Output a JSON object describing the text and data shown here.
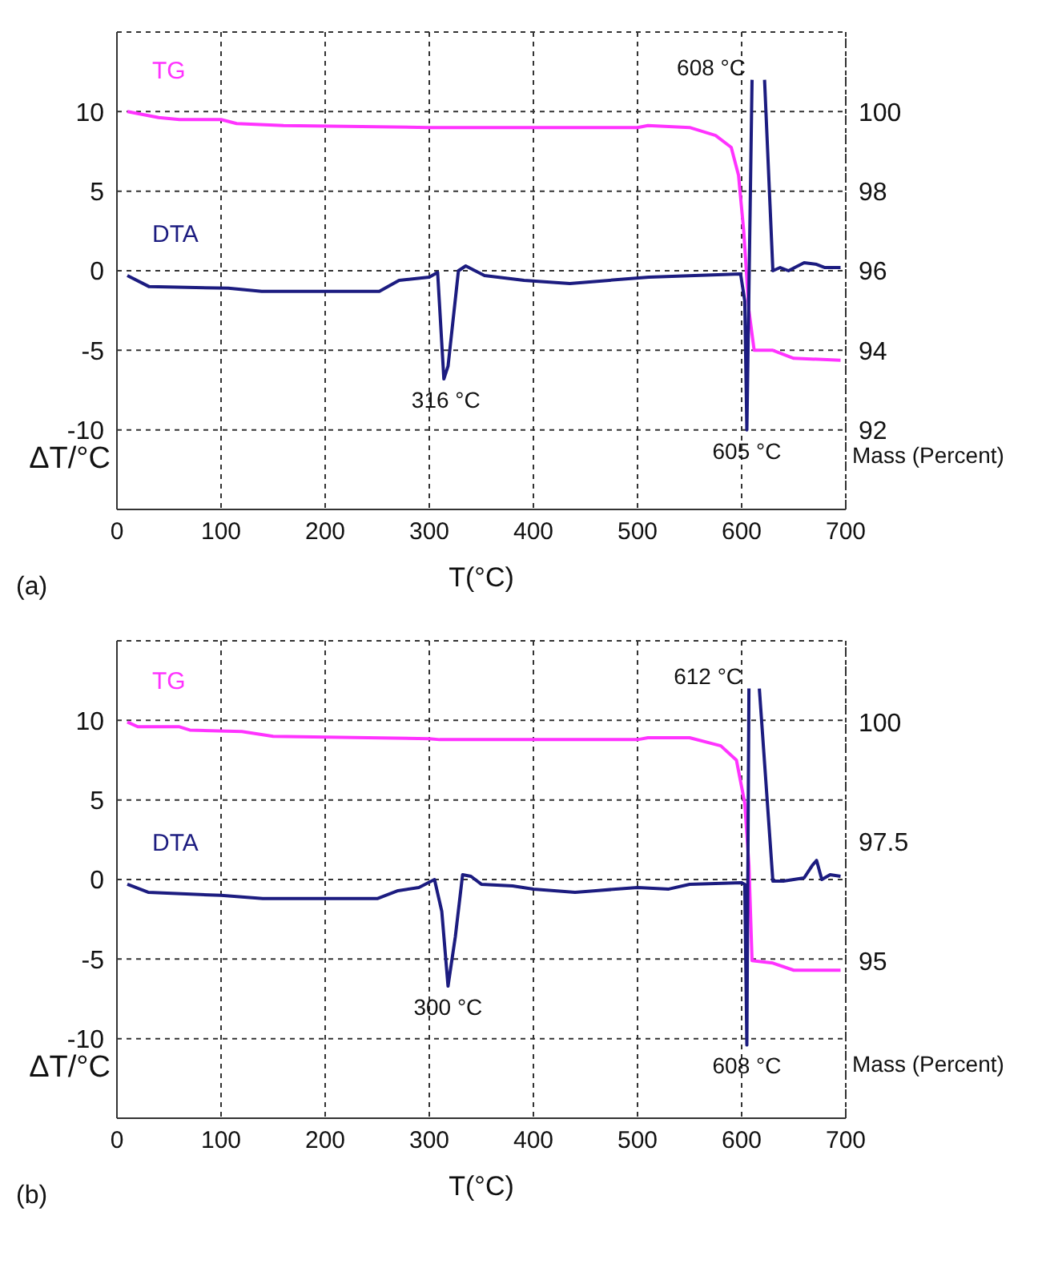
{
  "chart_data": [
    {
      "type": "line",
      "xlabel": "T(°C)",
      "ylabel": "ΔT/°C",
      "y2label": "Mass (Percent)",
      "xlim": [
        0,
        700
      ],
      "xticks": [
        0,
        100,
        200,
        300,
        400,
        500,
        600,
        700
      ],
      "ylim": [
        -15,
        15
      ],
      "yticks": [
        -10,
        -5,
        0,
        5,
        10
      ],
      "y2lim": [
        90,
        102
      ],
      "y2ticks": [
        92,
        94,
        96,
        98,
        100
      ],
      "grid": true,
      "annotations": [
        "(a)",
        {
          "text": "316 °C",
          "x": 316,
          "y": -6.8
        },
        {
          "text": "605 °C",
          "x": 605,
          "y": -10
        },
        {
          "text": "608 °C",
          "x": 610,
          "y": 12
        }
      ],
      "series": [
        {
          "name": "TG",
          "color": "#ff33ff",
          "axis": "y2",
          "x": [
            10,
            20,
            40,
            60,
            100,
            115,
            160,
            300,
            500,
            510,
            550,
            575,
            590,
            597,
            602,
            607,
            612,
            630,
            650,
            695
          ],
          "values": [
            100.0,
            99.95,
            99.85,
            99.8,
            99.8,
            99.7,
            99.65,
            99.6,
            99.6,
            99.65,
            99.6,
            99.4,
            99.1,
            98.4,
            97,
            95,
            94,
            94,
            93.8,
            93.75
          ]
        },
        {
          "name": "DTA",
          "color": "#1c1c80",
          "axis": "y",
          "x": [
            10,
            31,
            107,
            139,
            252,
            271,
            300,
            308,
            314,
            318,
            328,
            335,
            353,
            391,
            435,
            454,
            511,
            599,
            603,
            605,
            610,
            611,
            621,
            622,
            630,
            637,
            645,
            660,
            672,
            680,
            695
          ],
          "values": [
            -0.3,
            -1.0,
            -1.1,
            -1.3,
            -1.3,
            -0.6,
            -0.4,
            -0.1,
            -6.8,
            -6.0,
            0,
            0.3,
            -0.3,
            -0.6,
            -0.8,
            -0.7,
            -0.4,
            -0.2,
            -1.9,
            -10,
            12,
            null,
            null,
            12,
            0,
            0.2,
            0,
            0.5,
            0.4,
            0.2,
            0.2
          ]
        }
      ]
    },
    {
      "type": "line",
      "xlabel": "T(°C)",
      "ylabel": "ΔT/°C",
      "y2label": "Mass (Percent)",
      "xlim": [
        0,
        700
      ],
      "xticks": [
        0,
        100,
        200,
        300,
        400,
        500,
        600,
        700
      ],
      "ylim": [
        -15,
        15
      ],
      "yticks": [
        -10,
        -5,
        0,
        5,
        10
      ],
      "y2lim": [
        91.7,
        101.7
      ],
      "y2ticks": [
        95,
        97.5,
        100
      ],
      "grid": true,
      "annotations": [
        "(b)",
        {
          "text": "300 °C",
          "x": 318,
          "y": -6.7
        },
        {
          "text": "608 °C",
          "x": 605,
          "y": -10.4
        },
        {
          "text": "612 °C",
          "x": 607,
          "y": 12
        }
      ],
      "series": [
        {
          "name": "TG",
          "color": "#ff33ff",
          "axis": "y2",
          "x": [
            10,
            20,
            60,
            70,
            120,
            150,
            300,
            310,
            500,
            510,
            550,
            580,
            595,
            603,
            607,
            610,
            630,
            650,
            695
          ],
          "values": [
            100.0,
            99.9,
            99.9,
            99.83,
            99.8,
            99.7,
            99.65,
            99.63,
            99.63,
            99.67,
            99.67,
            99.5,
            99.2,
            98.3,
            97,
            95,
            94.95,
            94.8,
            94.8
          ]
        },
        {
          "name": "DTA",
          "color": "#1c1c80",
          "axis": "y",
          "x": [
            10,
            30,
            100,
            140,
            250,
            270,
            290,
            305,
            312,
            318,
            325,
            332,
            340,
            350,
            380,
            400,
            440,
            460,
            500,
            530,
            550,
            600,
            603,
            605,
            607,
            608,
            615,
            617,
            620,
            630,
            640,
            660,
            668,
            672,
            677,
            685,
            695
          ],
          "values": [
            -0.3,
            -0.8,
            -1.0,
            -1.2,
            -1.2,
            -0.7,
            -0.5,
            0,
            -2,
            -6.7,
            -3.6,
            0.3,
            0.2,
            -0.3,
            -0.4,
            -0.6,
            -0.8,
            -0.7,
            -0.5,
            -0.6,
            -0.3,
            -0.2,
            -0.3,
            -10.4,
            12,
            null,
            null,
            12,
            9.2,
            -0.1,
            -0.1,
            0.1,
            0.9,
            1.2,
            0,
            0.3,
            0.2
          ]
        }
      ]
    }
  ]
}
